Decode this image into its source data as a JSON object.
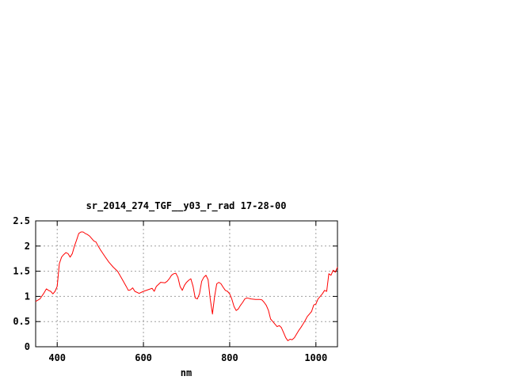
{
  "chart_data": {
    "type": "line",
    "title": "sr_2014_274_TGF__y03_r_rad 17-28-00",
    "xlabel": "nm",
    "ylabel": "",
    "xlim": [
      350,
      1050
    ],
    "ylim": [
      0,
      2.5
    ],
    "grid": true,
    "legend": "none",
    "x_ticks": [
      400,
      600,
      800,
      1000
    ],
    "x_tick_labels": [
      "400",
      "600",
      "800",
      "1000"
    ],
    "y_ticks": [
      0,
      0.5,
      1,
      1.5,
      2,
      2.5
    ],
    "y_tick_labels": [
      "0",
      "0.5",
      "1",
      "1.5",
      "2",
      "2.5"
    ],
    "series": [
      {
        "color": "#ff0000",
        "x": [
          350,
          360,
          368,
          375,
          380,
          385,
          390,
          395,
          400,
          405,
          410,
          415,
          420,
          425,
          430,
          435,
          440,
          445,
          450,
          455,
          460,
          465,
          470,
          475,
          480,
          485,
          490,
          495,
          500,
          510,
          520,
          530,
          540,
          550,
          560,
          565,
          570,
          575,
          580,
          590,
          600,
          610,
          620,
          625,
          630,
          640,
          650,
          655,
          660,
          665,
          670,
          675,
          680,
          685,
          690,
          695,
          700,
          705,
          710,
          715,
          720,
          725,
          730,
          735,
          740,
          745,
          750,
          755,
          760,
          765,
          770,
          775,
          780,
          785,
          790,
          795,
          800,
          805,
          810,
          815,
          820,
          825,
          830,
          835,
          840,
          850,
          860,
          870,
          875,
          880,
          885,
          890,
          895,
          900,
          905,
          910,
          915,
          920,
          925,
          930,
          935,
          940,
          945,
          950,
          955,
          960,
          965,
          970,
          975,
          980,
          985,
          990,
          995,
          1000,
          1005,
          1010,
          1015,
          1020,
          1025,
          1030,
          1035,
          1040,
          1045,
          1050
        ],
        "y": [
          0.9,
          0.95,
          1.05,
          1.15,
          1.12,
          1.1,
          1.05,
          1.1,
          1.2,
          1.65,
          1.78,
          1.83,
          1.87,
          1.85,
          1.78,
          1.85,
          2.0,
          2.12,
          2.25,
          2.28,
          2.28,
          2.25,
          2.23,
          2.2,
          2.15,
          2.1,
          2.08,
          2.0,
          1.93,
          1.8,
          1.68,
          1.58,
          1.5,
          1.35,
          1.2,
          1.12,
          1.13,
          1.17,
          1.1,
          1.06,
          1.1,
          1.13,
          1.16,
          1.1,
          1.2,
          1.28,
          1.27,
          1.3,
          1.35,
          1.42,
          1.45,
          1.46,
          1.38,
          1.2,
          1.12,
          1.22,
          1.28,
          1.32,
          1.35,
          1.2,
          0.97,
          0.95,
          1.05,
          1.3,
          1.38,
          1.42,
          1.33,
          0.95,
          0.65,
          1.0,
          1.25,
          1.28,
          1.25,
          1.18,
          1.12,
          1.1,
          1.05,
          0.95,
          0.8,
          0.72,
          0.75,
          0.82,
          0.88,
          0.95,
          0.97,
          0.95,
          0.94,
          0.94,
          0.93,
          0.88,
          0.82,
          0.72,
          0.55,
          0.5,
          0.45,
          0.4,
          0.42,
          0.38,
          0.28,
          0.18,
          0.12,
          0.15,
          0.14,
          0.18,
          0.25,
          0.32,
          0.38,
          0.45,
          0.52,
          0.6,
          0.65,
          0.7,
          0.83,
          0.85,
          0.95,
          1.0,
          1.05,
          1.12,
          1.1,
          1.45,
          1.42,
          1.52,
          1.48,
          1.58
        ]
      }
    ]
  }
}
